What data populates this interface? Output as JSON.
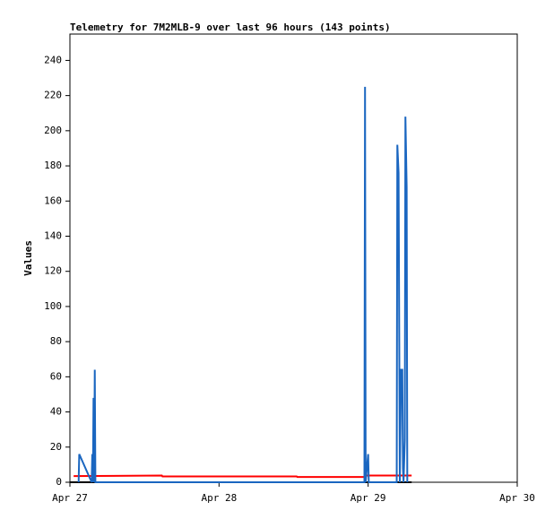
{
  "chart_data": {
    "type": "line",
    "title": "Telemetry for 7M2MLB-9 over last 96 hours (143 points)",
    "ylabel": "Values",
    "xlim": [
      0,
      72
    ],
    "ylim": [
      0,
      255
    ],
    "xticks": [
      {
        "value": 0,
        "label": "Apr 27"
      },
      {
        "value": 24,
        "label": "Apr 28"
      },
      {
        "value": 48,
        "label": "Apr 29"
      },
      {
        "value": 72,
        "label": "Apr 30"
      }
    ],
    "yticks": [
      0,
      20,
      40,
      60,
      80,
      100,
      120,
      140,
      160,
      180,
      200,
      220,
      240
    ],
    "series": [
      {
        "color": "#000000",
        "x": [
          0,
          55
        ],
        "values": [
          0,
          0
        ]
      },
      {
        "color": "#ff0000",
        "x": [
          0.6,
          14.8,
          14.9,
          36.5,
          36.6,
          47.4,
          47.5,
          55
        ],
        "values": [
          3.5,
          3.8,
          3.3,
          3.3,
          3.0,
          3.0,
          3.8,
          3.8
        ]
      },
      {
        "color": "#1a66c0",
        "x": [
          1.4,
          1.5,
          3.5,
          3.6,
          3.7,
          3.8,
          3.9,
          4.0,
          4.1,
          47.4,
          47.5,
          47.6,
          48.0,
          48.1,
          52.6,
          52.7,
          52.9,
          53.1,
          53.3,
          53.5,
          53.6,
          53.7,
          53.9,
          54.0,
          54.2,
          54.3
        ],
        "values": [
          0,
          16,
          0,
          16,
          0,
          48,
          0,
          64,
          0,
          0,
          225,
          0,
          16,
          0,
          0,
          192,
          176,
          0,
          64,
          64,
          8,
          0,
          24,
          208,
          168,
          0
        ]
      }
    ]
  }
}
